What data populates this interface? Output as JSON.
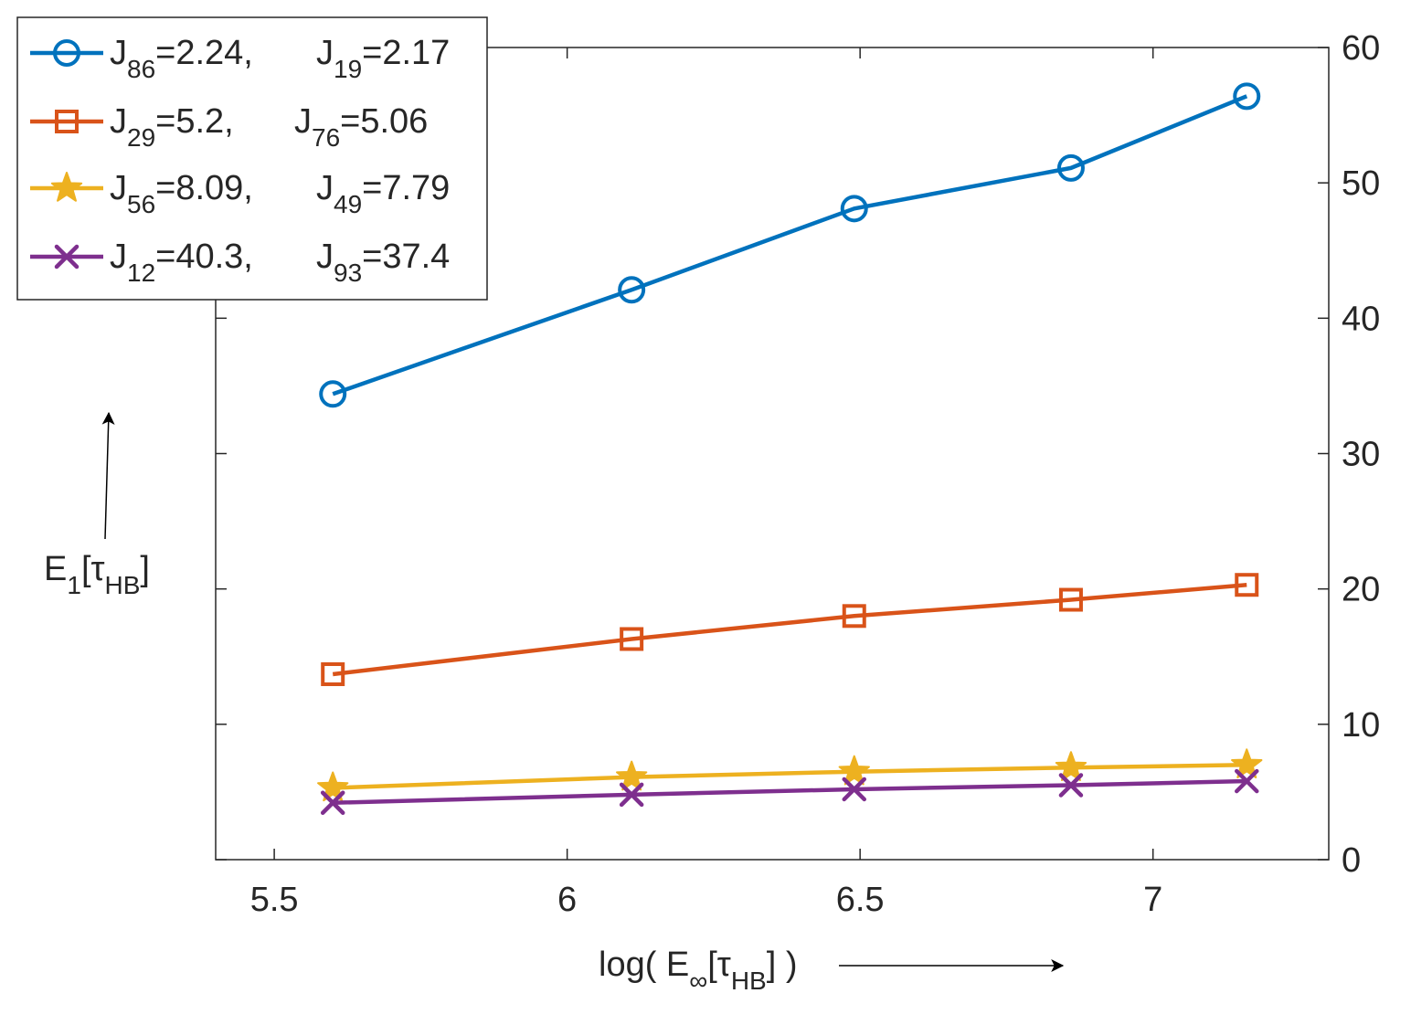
{
  "chart_data": {
    "type": "line",
    "title": "",
    "xlabel": {
      "prefix": "log( E",
      "sub1": "∞",
      "mid": "[τ",
      "sub2": "HB",
      "suffix": "] )"
    },
    "ylabel": {
      "main": "E",
      "sub1": "1",
      "mid": "[τ",
      "sub2": "HB",
      "suffix": "]"
    },
    "xlim": [
      5.4,
      7.3
    ],
    "ylim": [
      0,
      60
    ],
    "x_ticks": [
      5.5,
      6,
      6.5,
      7
    ],
    "x_tick_labels": [
      "5.5",
      "6",
      "6.5",
      "7"
    ],
    "y_ticks": [
      0,
      10,
      20,
      30,
      40,
      50,
      60
    ],
    "y_tick_labels": [
      "0",
      "10",
      "20",
      "30",
      "40",
      "50",
      "60"
    ],
    "y_axis_side": "right",
    "grid": false,
    "legend_position": "top-left",
    "x": [
      5.6,
      6.11,
      6.49,
      6.86,
      7.16
    ],
    "series": [
      {
        "name": "J86=2.24, J19=2.17",
        "marker": "circle",
        "color": "#0072BD",
        "label": {
          "a": "J",
          "a_sub": "86",
          "a_val": "=2.24,",
          "b": "J",
          "b_sub": "19",
          "b_val": "=2.17"
        },
        "values": [
          34.4,
          42.1,
          48.1,
          51.1,
          56.4
        ]
      },
      {
        "name": "J29=5.2, J76=5.06",
        "marker": "square",
        "color": "#D95319",
        "label": {
          "a": "J",
          "a_sub": "29",
          "a_val": "=5.2,",
          "b": "J",
          "b_sub": "76",
          "b_val": "=5.06"
        },
        "values": [
          13.7,
          16.3,
          18.0,
          19.2,
          20.3
        ]
      },
      {
        "name": "J56=8.09, J49=7.79",
        "marker": "star",
        "color": "#EDB120",
        "label": {
          "a": "J",
          "a_sub": "56",
          "a_val": "=8.09,",
          "b": "J",
          "b_sub": "49",
          "b_val": "=7.79"
        },
        "values": [
          5.3,
          6.1,
          6.5,
          6.8,
          7.0
        ]
      },
      {
        "name": "J12=40.3, J93=37.4",
        "marker": "x",
        "color": "#7E2F8E",
        "label": {
          "a": "J",
          "a_sub": "12",
          "a_val": "=40.3,",
          "b": "J",
          "b_sub": "93",
          "b_val": "=37.4"
        },
        "values": [
          4.2,
          4.8,
          5.2,
          5.5,
          5.8
        ]
      }
    ]
  }
}
